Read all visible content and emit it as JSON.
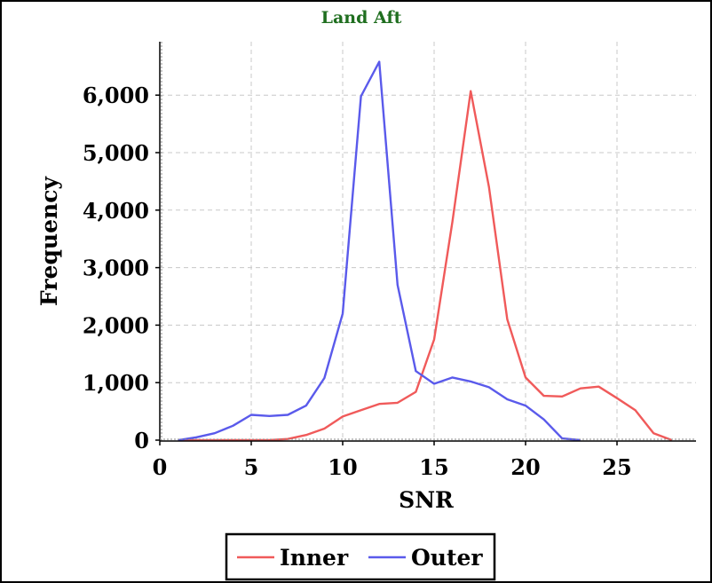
{
  "chart_data": {
    "type": "line",
    "title": "Land Aft",
    "title_color": "#1f6e1f",
    "xlabel": "SNR",
    "ylabel": "Frequency",
    "xlim": [
      0,
      29
    ],
    "ylim": [
      0,
      6000
    ],
    "x_ticks": [
      0,
      5,
      10,
      15,
      20,
      25
    ],
    "x_tick_labels": [
      "0",
      "5",
      "10",
      "15",
      "20",
      "25"
    ],
    "y_ticks": [
      0,
      1000,
      2000,
      3000,
      4000,
      5000,
      6000
    ],
    "y_tick_labels": [
      "0",
      "1,000",
      "2,000",
      "3,000",
      "4,000",
      "5,000",
      "6,000"
    ],
    "grid": true,
    "legend_position": "bottom",
    "series": [
      {
        "name": "Inner",
        "color": "#f05a5a",
        "x": [
          1,
          2,
          3,
          4,
          5,
          6,
          7,
          8,
          9,
          10,
          11,
          12,
          13,
          14,
          15,
          16,
          17,
          18,
          19,
          20,
          21,
          22,
          23,
          24,
          25,
          26,
          27,
          28
        ],
        "y": [
          0,
          0,
          0,
          0,
          0,
          0,
          20,
          90,
          200,
          410,
          520,
          630,
          650,
          840,
          1750,
          3800,
          6070,
          4400,
          2100,
          1090,
          770,
          760,
          900,
          930,
          730,
          520,
          120,
          0
        ]
      },
      {
        "name": "Outer",
        "color": "#5a5aeb",
        "x": [
          1,
          2,
          3,
          4,
          5,
          6,
          7,
          8,
          9,
          10,
          11,
          12,
          13,
          14,
          15,
          16,
          17,
          18,
          19,
          20,
          21,
          22,
          23
        ],
        "y": [
          0,
          50,
          120,
          250,
          440,
          420,
          440,
          600,
          1080,
          2200,
          5980,
          6580,
          2700,
          1200,
          980,
          1090,
          1020,
          920,
          710,
          600,
          360,
          30,
          0
        ]
      }
    ]
  }
}
